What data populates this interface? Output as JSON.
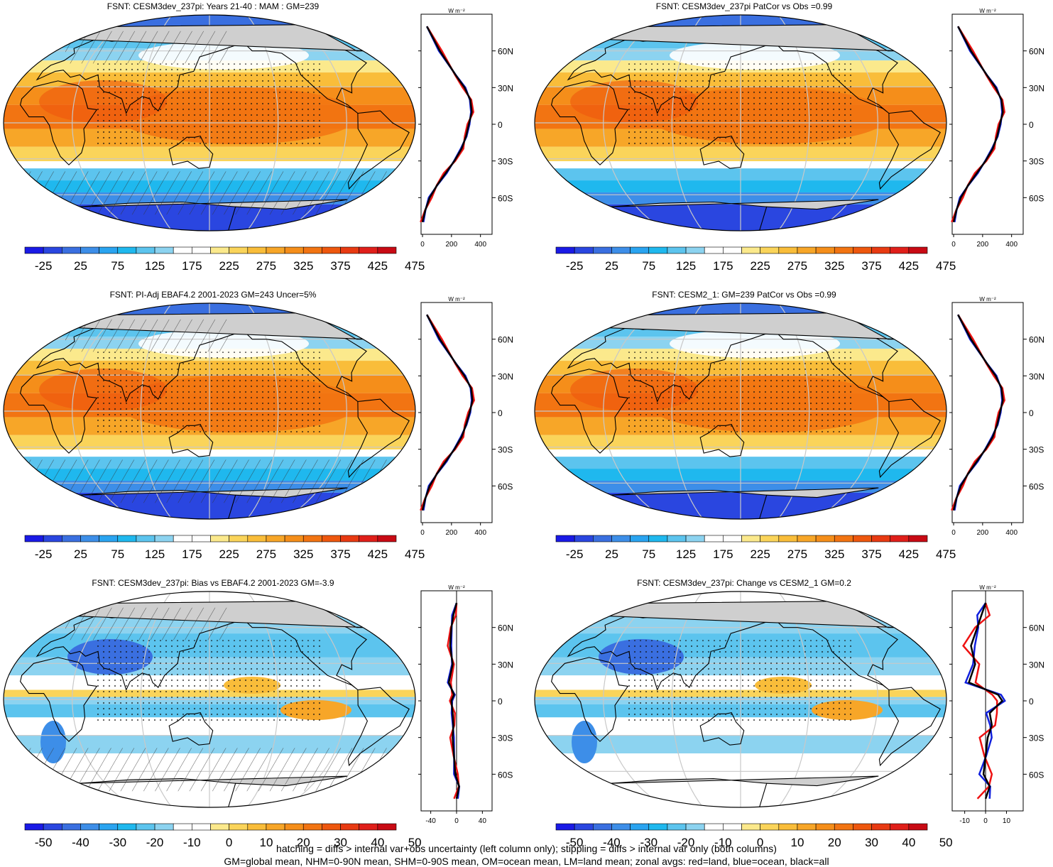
{
  "panels": [
    {
      "title": "FSNT: CESM3dev_237pi: Years 21-40 : MAM : GM=239",
      "kind": "abs",
      "hatch": true,
      "cbar_labels": [
        "-25",
        "25",
        "75",
        "125",
        "175",
        "225",
        "275",
        "325",
        "375",
        "425",
        "475"
      ],
      "zonal_xticks": [
        "0",
        "200",
        "400"
      ],
      "zonal_ylabels": [
        "60N",
        "30N",
        "0",
        "30S",
        "60S"
      ],
      "zonal_unit": "W m⁻²"
    },
    {
      "title": "FSNT: CESM3dev_237pi PatCor vs Obs =0.99",
      "kind": "abs",
      "hatch": false,
      "cbar_labels": [
        "-25",
        "25",
        "75",
        "125",
        "175",
        "225",
        "275",
        "325",
        "375",
        "425",
        "475"
      ],
      "zonal_xticks": [
        "0",
        "200",
        "400"
      ],
      "zonal_ylabels": [
        "60N",
        "30N",
        "0",
        "30S",
        "60S"
      ],
      "zonal_unit": "W m⁻²"
    },
    {
      "title": "FSNT: PI-Adj EBAF4.2 2001-2023 GM=243 Uncer=5%",
      "kind": "abs",
      "hatch": true,
      "cbar_labels": [
        "-25",
        "25",
        "75",
        "125",
        "175",
        "225",
        "275",
        "325",
        "375",
        "425",
        "475"
      ],
      "zonal_xticks": [
        "0",
        "200",
        "400"
      ],
      "zonal_ylabels": [
        "60N",
        "30N",
        "0",
        "30S",
        "60S"
      ],
      "zonal_unit": "W m⁻²"
    },
    {
      "title": "FSNT: CESM2_1: GM=239 PatCor vs Obs =0.99",
      "kind": "abs",
      "hatch": false,
      "cbar_labels": [
        "-25",
        "25",
        "75",
        "125",
        "175",
        "225",
        "275",
        "325",
        "375",
        "425",
        "475"
      ],
      "zonal_xticks": [
        "0",
        "200",
        "400"
      ],
      "zonal_ylabels": [
        "60N",
        "30N",
        "0",
        "30S",
        "60S"
      ],
      "zonal_unit": "W m⁻²"
    },
    {
      "title": "FSNT: CESM3dev_237pi: Bias vs EBAF4.2 2001-2023 GM=-3.9",
      "kind": "diff",
      "hatch": true,
      "cbar_labels": [
        "-50",
        "-40",
        "-30",
        "-20",
        "-10",
        "0",
        "10",
        "20",
        "30",
        "40",
        "50"
      ],
      "zonal_xticks": [
        "-40",
        "0",
        "40"
      ],
      "zonal_ylabels": [
        "60N",
        "30N",
        "0",
        "30S",
        "60S"
      ],
      "zonal_unit": "W m⁻²"
    },
    {
      "title": "FSNT: CESM3dev_237pi: Change vs CESM2_1 GM=0.2",
      "kind": "diff",
      "hatch": false,
      "cbar_labels": [
        "-50",
        "-40",
        "-30",
        "-20",
        "-10",
        "0",
        "10",
        "20",
        "30",
        "40",
        "50"
      ],
      "zonal_xticks": [
        "-10",
        "0",
        "10"
      ],
      "zonal_ylabels": [
        "60N",
        "30N",
        "0",
        "30S",
        "60S"
      ],
      "zonal_unit": "W m⁻²"
    }
  ],
  "footer": {
    "line1": "hatching = diffs > internal var+obs uncertainty (left column only); stippling = diffs > internal var only (both columns)",
    "line2": "GM=global mean, NHM=0-90N mean, SHM=0-90S mean, OM=ocean mean, LM=land mean; zonal avgs: red=land, blue=ocean, black=all"
  },
  "colors": {
    "scale": [
      "#1a1ae6",
      "#2a46e0",
      "#3a6fe0",
      "#3d8ee8",
      "#2aa4f0",
      "#1fb8ee",
      "#5cc4ee",
      "#8cd3f0",
      "#ffffff",
      "#ffffff",
      "#fbe98c",
      "#fad45a",
      "#f9bd3a",
      "#f7a628",
      "#f58e1a",
      "#f27412",
      "#ee570e",
      "#e83a12",
      "#e01f1a",
      "#c80a14"
    ],
    "land": "#cfcfcf",
    "land_line": "#000000",
    "grid": "#c8c8c8",
    "zonal_land": "#ee1111",
    "zonal_ocean": "#1020dd",
    "zonal_all": "#000000"
  },
  "chart_data": [
    {
      "type": "heatmap",
      "title": "FSNT: CESM3dev_237pi: Years 21-40 : MAM : GM=239",
      "colorbar_range": [
        -25,
        475
      ],
      "zonal": {
        "lat": [
          80,
          60,
          40,
          30,
          20,
          10,
          0,
          -10,
          -20,
          -30,
          -40,
          -50,
          -60,
          -70,
          -80
        ],
        "all": [
          30,
          120,
          230,
          290,
          330,
          340,
          320,
          300,
          270,
          220,
          160,
          100,
          50,
          20,
          0
        ]
      }
    },
    {
      "type": "heatmap",
      "title": "FSNT: CESM3dev_237pi PatCor vs Obs =0.99",
      "colorbar_range": [
        -25,
        475
      ],
      "zonal": {
        "lat": [
          80,
          60,
          40,
          30,
          20,
          10,
          0,
          -10,
          -20,
          -30,
          -40,
          -50,
          -60,
          -70,
          -80
        ],
        "all": [
          30,
          120,
          230,
          290,
          330,
          340,
          320,
          300,
          270,
          220,
          160,
          100,
          50,
          20,
          0
        ]
      }
    },
    {
      "type": "heatmap",
      "title": "FSNT: PI-Adj EBAF4.2 2001-2023 GM=243 Uncer=5%",
      "colorbar_range": [
        -25,
        475
      ],
      "zonal": {
        "lat": [
          80,
          60,
          40,
          30,
          20,
          10,
          0,
          -10,
          -20,
          -30,
          -40,
          -50,
          -60,
          -70,
          -80
        ],
        "all": [
          30,
          120,
          230,
          290,
          335,
          345,
          325,
          300,
          270,
          220,
          160,
          100,
          50,
          20,
          0
        ]
      }
    },
    {
      "type": "heatmap",
      "title": "FSNT: CESM2_1: GM=239 PatCor vs Obs =0.99",
      "colorbar_range": [
        -25,
        475
      ],
      "zonal": {
        "lat": [
          80,
          60,
          40,
          30,
          20,
          10,
          0,
          -10,
          -20,
          -30,
          -40,
          -50,
          -60,
          -70,
          -80
        ],
        "all": [
          30,
          120,
          230,
          290,
          330,
          340,
          320,
          300,
          270,
          220,
          160,
          100,
          50,
          20,
          0
        ]
      }
    },
    {
      "type": "heatmap",
      "title": "FSNT: CESM3dev_237pi: Bias vs EBAF4.2 2001-2023 GM=-3.9",
      "colorbar_range": [
        -50,
        50
      ],
      "zonal": {
        "lat": [
          80,
          70,
          60,
          45,
          30,
          15,
          5,
          0,
          -10,
          -20,
          -30,
          -45,
          -60,
          -70,
          -80
        ],
        "all": [
          0,
          -5,
          -8,
          -10,
          -6,
          -12,
          -4,
          -8,
          -6,
          -5,
          -6,
          -4,
          -2,
          4,
          0
        ]
      }
    },
    {
      "type": "heatmap",
      "title": "FSNT: CESM3dev_237pi: Change vs CESM2_1 GM=0.2",
      "colorbar_range": [
        -50,
        50
      ],
      "zonal": {
        "lat": [
          80,
          70,
          60,
          45,
          30,
          15,
          5,
          0,
          -10,
          -20,
          -30,
          -45,
          -60,
          -70,
          -80
        ],
        "all": [
          0,
          -2,
          -4,
          -7,
          -5,
          -8,
          6,
          8,
          2,
          3,
          1,
          0,
          -1,
          2,
          0
        ]
      }
    }
  ]
}
